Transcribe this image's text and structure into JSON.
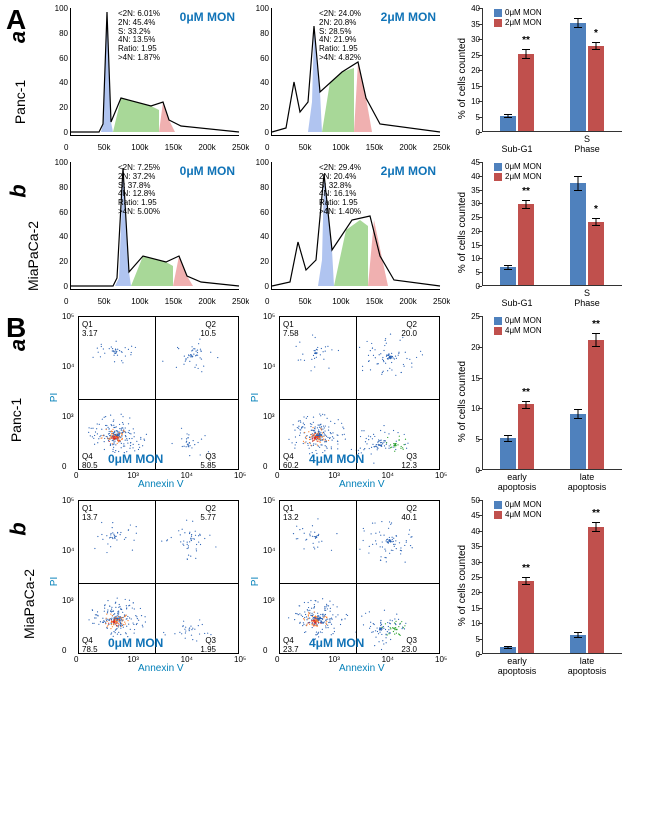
{
  "colors": {
    "blue_bar": "#4f81bd",
    "red_bar": "#c0504d",
    "histo_blue": "#b0c4f0",
    "histo_green": "#a8d898",
    "histo_red": "#f0b0b0",
    "label_blue": "#1073b7",
    "axis_blue": "#007fb8"
  },
  "sectionA": {
    "label": "A",
    "rows": [
      {
        "sub": "a",
        "cell_line": "Panc-1",
        "histos": [
          {
            "sample": "0μM MON",
            "stats": [
              "<2N: 6.01%",
              "2N: 45.4%",
              "S: 33.2%",
              "4N: 13.5%",
              "Ratio: 1.95",
              ">4N: 1.87%"
            ],
            "profile": "low"
          },
          {
            "sample": "2μM MON",
            "stats": [
              "<2N: 24.0%",
              "2N: 20.8%",
              "S: 28.5%",
              "4N: 21.9%",
              "Ratio: 1.95",
              ">4N: 4.82%"
            ],
            "profile": "high"
          }
        ],
        "bar": {
          "ylabel": "% of cells counted",
          "ymax": 40,
          "ystep": 5,
          "legend": [
            {
              "label": "0μM MON",
              "color": "#4f81bd"
            },
            {
              "label": "2μM MON",
              "color": "#c0504d"
            }
          ],
          "cats": [
            "Sub-G1",
            "S Phase"
          ],
          "series": [
            {
              "cat": 0,
              "vals": [
                {
                  "v": 5,
                  "err": 0.6,
                  "sig": ""
                },
                {
                  "v": 25,
                  "err": 1.5,
                  "sig": "**"
                }
              ]
            },
            {
              "cat": 1,
              "vals": [
                {
                  "v": 35,
                  "err": 1.5,
                  "sig": ""
                },
                {
                  "v": 27.5,
                  "err": 1.2,
                  "sig": "*"
                }
              ]
            }
          ]
        }
      },
      {
        "sub": "b",
        "cell_line": "MiaPaCa-2",
        "histos": [
          {
            "sample": "0μM MON",
            "stats": [
              "<2N: 7.25%",
              "2N: 37.2%",
              "S: 37.8%",
              "4N: 12.8%",
              "Ratio: 1.95",
              ">4N: 5.00%"
            ],
            "profile": "low2"
          },
          {
            "sample": "2μM MON",
            "stats": [
              "<2N: 29.4%",
              "2N: 20.4%",
              "S: 32.8%",
              "4N: 16.1%",
              "Ratio: 1.95",
              ">4N: 1.40%"
            ],
            "profile": "high2"
          }
        ],
        "bar": {
          "ylabel": "% of cells counted",
          "ymax": 45,
          "ystep": 5,
          "legend": [
            {
              "label": "0μM MON",
              "color": "#4f81bd"
            },
            {
              "label": "2μM MON",
              "color": "#c0504d"
            }
          ],
          "cats": [
            "Sub-G1",
            "S Phase"
          ],
          "series": [
            {
              "cat": 0,
              "vals": [
                {
                  "v": 6.5,
                  "err": 0.8,
                  "sig": ""
                },
                {
                  "v": 29.5,
                  "err": 1.5,
                  "sig": "**"
                }
              ]
            },
            {
              "cat": 1,
              "vals": [
                {
                  "v": 37,
                  "err": 2.5,
                  "sig": ""
                },
                {
                  "v": 23,
                  "err": 1.2,
                  "sig": "*"
                }
              ]
            }
          ]
        }
      }
    ],
    "xticks": [
      "0",
      "50k",
      "100k",
      "150k",
      "200k",
      "250k"
    ],
    "yticks": [
      "0",
      "20",
      "40",
      "60",
      "80",
      "100"
    ]
  },
  "sectionB": {
    "label": "B",
    "rows": [
      {
        "sub": "a",
        "cell_line": "Panc-1",
        "scatters": [
          {
            "sample": "0μM MON",
            "quads": {
              "Q1": "3.17",
              "Q2": "10.5",
              "Q3": "5.85",
              "Q4": "80.5"
            }
          },
          {
            "sample": "4μM MON",
            "quads": {
              "Q1": "7.58",
              "Q2": "20.0",
              "Q3": "12.3",
              "Q4": "60.2"
            }
          }
        ],
        "bar": {
          "ylabel": "% of cells counted",
          "ymax": 25,
          "ystep": 5,
          "legend": [
            {
              "label": "0μM MON",
              "color": "#4f81bd"
            },
            {
              "label": "4μM MON",
              "color": "#c0504d"
            }
          ],
          "cats": [
            "early apoptosis",
            "late apoptosis"
          ],
          "series": [
            {
              "cat": 0,
              "vals": [
                {
                  "v": 5,
                  "err": 0.5,
                  "sig": ""
                },
                {
                  "v": 10.5,
                  "err": 0.6,
                  "sig": "**"
                }
              ]
            },
            {
              "cat": 1,
              "vals": [
                {
                  "v": 9,
                  "err": 0.8,
                  "sig": ""
                },
                {
                  "v": 21,
                  "err": 1.0,
                  "sig": "**"
                }
              ]
            }
          ]
        }
      },
      {
        "sub": "b",
        "cell_line": "MiaPaCa-2",
        "scatters": [
          {
            "sample": "0μM MON",
            "quads": {
              "Q1": "13.7",
              "Q2": "5.77",
              "Q3": "1.95",
              "Q4": "78.5"
            }
          },
          {
            "sample": "4μM MON",
            "quads": {
              "Q1": "13.2",
              "Q2": "40.1",
              "Q3": "23.0",
              "Q4": "23.7"
            }
          }
        ],
        "bar": {
          "ylabel": "% of cells counted",
          "ymax": 50,
          "ystep": 5,
          "legend": [
            {
              "label": "0μM MON",
              "color": "#4f81bd"
            },
            {
              "label": "4μM MON",
              "color": "#c0504d"
            }
          ],
          "cats": [
            "early apoptosis",
            "late apoptosis"
          ],
          "series": [
            {
              "cat": 0,
              "vals": [
                {
                  "v": 2,
                  "err": 0.4,
                  "sig": ""
                },
                {
                  "v": 23.5,
                  "err": 1.2,
                  "sig": "**"
                }
              ]
            },
            {
              "cat": 1,
              "vals": [
                {
                  "v": 6,
                  "err": 0.7,
                  "sig": ""
                },
                {
                  "v": 41,
                  "err": 1.5,
                  "sig": "**"
                }
              ]
            }
          ]
        }
      }
    ],
    "xlabel": "Annexin V",
    "ylabel_s": "PI",
    "xticks": [
      "0",
      "10³",
      "10⁴",
      "10⁵"
    ],
    "yticks": [
      "0",
      "10³",
      "10⁴",
      "10⁵"
    ]
  }
}
